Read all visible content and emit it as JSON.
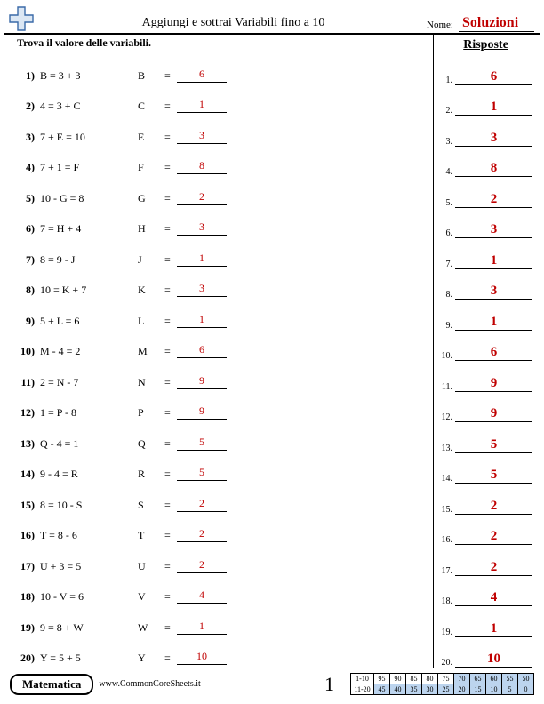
{
  "header": {
    "title": "Aggiungi e sottrai Variabili fino a 10",
    "nameLabel": "Nome:",
    "solutions": "Soluzioni"
  },
  "instructions": "Trova il valore delle variabili.",
  "risposteLabel": "Risposte",
  "problems": [
    {
      "n": "1)",
      "eq": "B = 3 + 3",
      "v": "B",
      "ans": "6"
    },
    {
      "n": "2)",
      "eq": "4 = 3 + C",
      "v": "C",
      "ans": "1"
    },
    {
      "n": "3)",
      "eq": "7 + E = 10",
      "v": "E",
      "ans": "3"
    },
    {
      "n": "4)",
      "eq": "7 + 1 = F",
      "v": "F",
      "ans": "8"
    },
    {
      "n": "5)",
      "eq": "10 - G = 8",
      "v": "G",
      "ans": "2"
    },
    {
      "n": "6)",
      "eq": "7 = H + 4",
      "v": "H",
      "ans": "3"
    },
    {
      "n": "7)",
      "eq": "8 = 9 - J",
      "v": "J",
      "ans": "1"
    },
    {
      "n": "8)",
      "eq": "10 = K + 7",
      "v": "K",
      "ans": "3"
    },
    {
      "n": "9)",
      "eq": "5 + L = 6",
      "v": "L",
      "ans": "1"
    },
    {
      "n": "10)",
      "eq": "M - 4 = 2",
      "v": "M",
      "ans": "6"
    },
    {
      "n": "11)",
      "eq": "2 = N - 7",
      "v": "N",
      "ans": "9"
    },
    {
      "n": "12)",
      "eq": "1 = P - 8",
      "v": "P",
      "ans": "9"
    },
    {
      "n": "13)",
      "eq": "Q - 4 = 1",
      "v": "Q",
      "ans": "5"
    },
    {
      "n": "14)",
      "eq": "9 - 4 = R",
      "v": "R",
      "ans": "5"
    },
    {
      "n": "15)",
      "eq": "8 = 10 - S",
      "v": "S",
      "ans": "2"
    },
    {
      "n": "16)",
      "eq": "T = 8 - 6",
      "v": "T",
      "ans": "2"
    },
    {
      "n": "17)",
      "eq": "U + 3 = 5",
      "v": "U",
      "ans": "2"
    },
    {
      "n": "18)",
      "eq": "10 - V = 6",
      "v": "V",
      "ans": "4"
    },
    {
      "n": "19)",
      "eq": "9 = 8 + W",
      "v": "W",
      "ans": "1"
    },
    {
      "n": "20)",
      "eq": "Y = 5 + 5",
      "v": "Y",
      "ans": "10"
    }
  ],
  "answers": [
    {
      "n": "1.",
      "v": "6"
    },
    {
      "n": "2.",
      "v": "1"
    },
    {
      "n": "3.",
      "v": "3"
    },
    {
      "n": "4.",
      "v": "8"
    },
    {
      "n": "5.",
      "v": "2"
    },
    {
      "n": "6.",
      "v": "3"
    },
    {
      "n": "7.",
      "v": "1"
    },
    {
      "n": "8.",
      "v": "3"
    },
    {
      "n": "9.",
      "v": "1"
    },
    {
      "n": "10.",
      "v": "6"
    },
    {
      "n": "11.",
      "v": "9"
    },
    {
      "n": "12.",
      "v": "9"
    },
    {
      "n": "13.",
      "v": "5"
    },
    {
      "n": "14.",
      "v": "5"
    },
    {
      "n": "15.",
      "v": "2"
    },
    {
      "n": "16.",
      "v": "2"
    },
    {
      "n": "17.",
      "v": "2"
    },
    {
      "n": "18.",
      "v": "4"
    },
    {
      "n": "19.",
      "v": "1"
    },
    {
      "n": "20.",
      "v": "10"
    }
  ],
  "footer": {
    "subject": "Matematica",
    "url": "www.CommonCoreSheets.it",
    "page": "1",
    "scoreRange1": "1-10",
    "scoreRange2": "11-20",
    "row1": [
      "95",
      "90",
      "85",
      "80",
      "75",
      "70",
      "65",
      "60",
      "55",
      "50"
    ],
    "row2": [
      "45",
      "40",
      "35",
      "30",
      "25",
      "20",
      "15",
      "10",
      "5",
      "0"
    ],
    "hlStart1": 5,
    "hlStart2": 0
  },
  "logo": {
    "stroke": "#3a6aa8",
    "fill": "#dbe7f4"
  }
}
